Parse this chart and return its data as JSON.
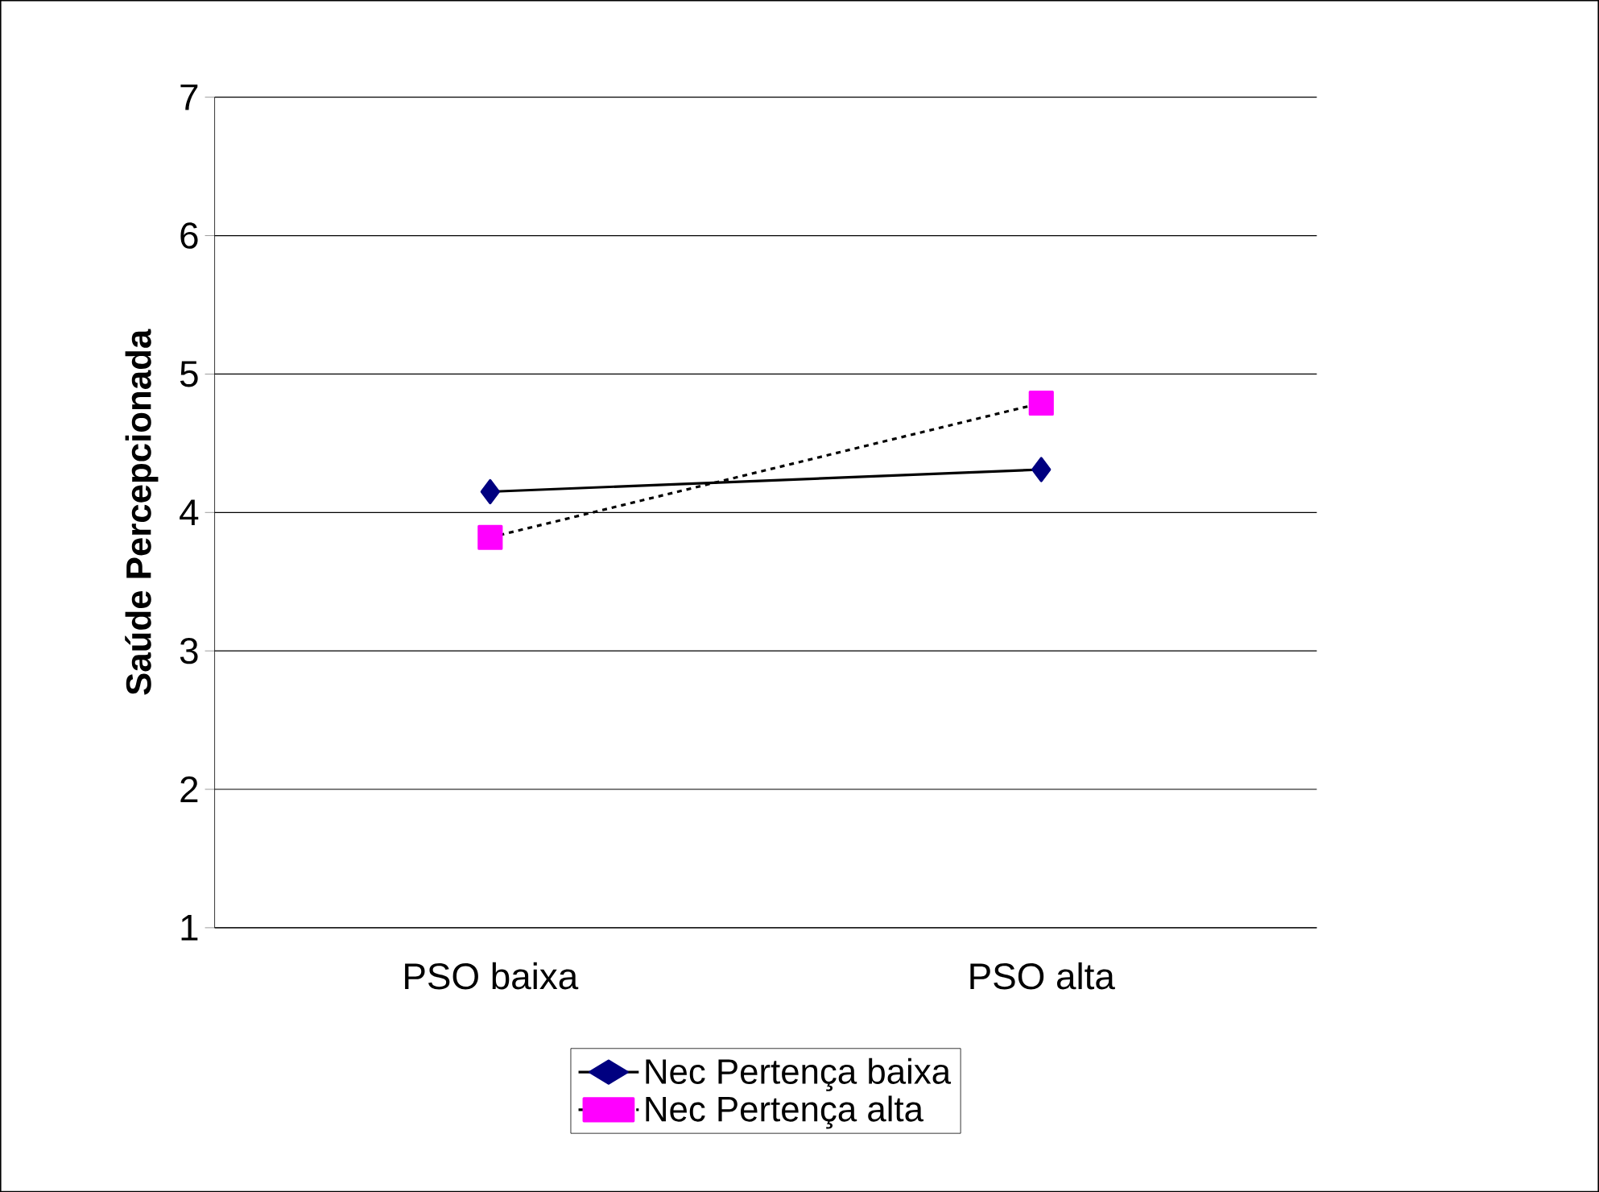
{
  "chart_data": {
    "type": "line",
    "ylabel": "Saúde Percepcionada",
    "categories": [
      "PSO baixa",
      "PSO alta"
    ],
    "series": [
      {
        "name": "Nec Pertença baixa",
        "color": "#000080",
        "values": [
          4.15,
          4.31
        ],
        "marker": "diamond",
        "line_style": "solid"
      },
      {
        "name": "Nec Pertença alta",
        "color": "#ff00ff",
        "values": [
          3.82,
          4.79
        ],
        "marker": "square",
        "line_style": "dashed"
      }
    ],
    "ylim": [
      1,
      7
    ],
    "yticks": [
      1,
      2,
      3,
      4,
      5,
      6,
      7
    ],
    "grid": "y",
    "legend": "bottom"
  }
}
